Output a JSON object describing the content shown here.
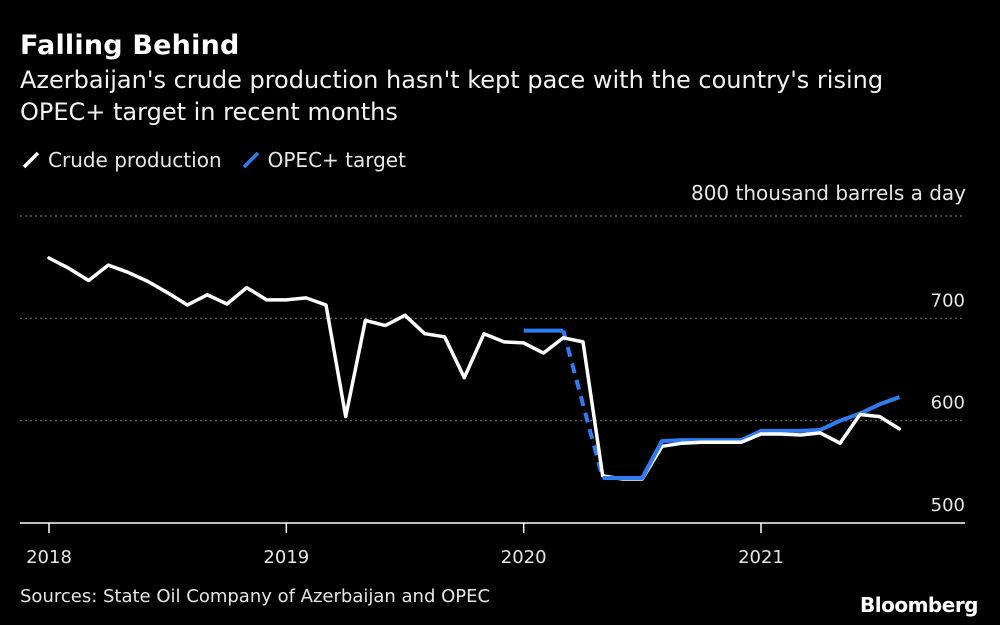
{
  "header": {
    "title": "Falling Behind",
    "subtitle": "Azerbaijan's crude production hasn't kept pace with the country's rising OPEC+ target in recent months"
  },
  "legend": {
    "crude_label": "Crude production",
    "target_label": "OPEC+ target"
  },
  "footer": {
    "source": "Sources: State Oil Company of Azerbaijan and OPEC",
    "brand": "Bloomberg"
  },
  "colors": {
    "background": "#000000",
    "crude": "#ffffff",
    "target": "#2f7bf0",
    "grid": "#6b6b6b"
  },
  "chart_data": {
    "type": "line",
    "title": "Falling Behind",
    "units_label": "800 thousand barrels a day",
    "ylim": [
      500,
      800
    ],
    "xlim": [
      2018.0,
      2021.75
    ],
    "yticks": [
      {
        "value": 800,
        "label": "800 thousand barrels a day"
      },
      {
        "value": 700,
        "label": "700"
      },
      {
        "value": 600,
        "label": "600"
      },
      {
        "value": 500,
        "label": "500"
      }
    ],
    "xticks": [
      {
        "value": 2018,
        "label": "2018"
      },
      {
        "value": 2019,
        "label": "2019"
      },
      {
        "value": 2020,
        "label": "2020"
      },
      {
        "value": 2021,
        "label": "2021"
      }
    ],
    "series": [
      {
        "name": "Crude production",
        "color": "#ffffff",
        "points": [
          [
            2018.0,
            759
          ],
          [
            2018.083,
            749
          ],
          [
            2018.167,
            737
          ],
          [
            2018.25,
            752
          ],
          [
            2018.333,
            745
          ],
          [
            2018.417,
            736
          ],
          [
            2018.5,
            725
          ],
          [
            2018.583,
            713
          ],
          [
            2018.667,
            723
          ],
          [
            2018.75,
            714
          ],
          [
            2018.833,
            730
          ],
          [
            2018.917,
            718
          ],
          [
            2019.0,
            718
          ],
          [
            2019.083,
            720
          ],
          [
            2019.167,
            713
          ],
          [
            2019.25,
            604
          ],
          [
            2019.333,
            698
          ],
          [
            2019.417,
            693
          ],
          [
            2019.5,
            703
          ],
          [
            2019.583,
            685
          ],
          [
            2019.667,
            682
          ],
          [
            2019.75,
            642
          ],
          [
            2019.833,
            685
          ],
          [
            2019.917,
            677
          ],
          [
            2020.0,
            676
          ],
          [
            2020.083,
            666
          ],
          [
            2020.167,
            681
          ],
          [
            2020.25,
            677
          ],
          [
            2020.333,
            546
          ],
          [
            2020.417,
            543
          ],
          [
            2020.5,
            543
          ],
          [
            2020.583,
            575
          ],
          [
            2020.667,
            578
          ],
          [
            2020.75,
            579
          ],
          [
            2020.833,
            579
          ],
          [
            2020.917,
            579
          ],
          [
            2021.0,
            587
          ],
          [
            2021.083,
            587
          ],
          [
            2021.167,
            586
          ],
          [
            2021.25,
            588
          ],
          [
            2021.333,
            578
          ],
          [
            2021.417,
            606
          ],
          [
            2021.5,
            604
          ],
          [
            2021.583,
            592
          ]
        ]
      },
      {
        "name": "OPEC+ target",
        "color": "#2f7bf0",
        "segments": [
          {
            "style": "solid",
            "points": [
              [
                2020.0,
                688
              ],
              [
                2020.167,
                688
              ]
            ]
          },
          {
            "style": "dashed",
            "points": [
              [
                2020.167,
                688
              ],
              [
                2020.333,
                544
              ]
            ]
          },
          {
            "style": "solid",
            "points": [
              [
                2020.333,
                544
              ],
              [
                2020.5,
                544
              ],
              [
                2020.583,
                580
              ],
              [
                2020.667,
                581
              ],
              [
                2020.75,
                581
              ],
              [
                2020.833,
                581
              ],
              [
                2020.917,
                581
              ],
              [
                2021.0,
                590
              ],
              [
                2021.083,
                590
              ],
              [
                2021.167,
                590
              ],
              [
                2021.25,
                591
              ],
              [
                2021.333,
                600
              ],
              [
                2021.417,
                607
              ],
              [
                2021.5,
                616
              ],
              [
                2021.583,
                623
              ]
            ]
          }
        ]
      }
    ]
  }
}
